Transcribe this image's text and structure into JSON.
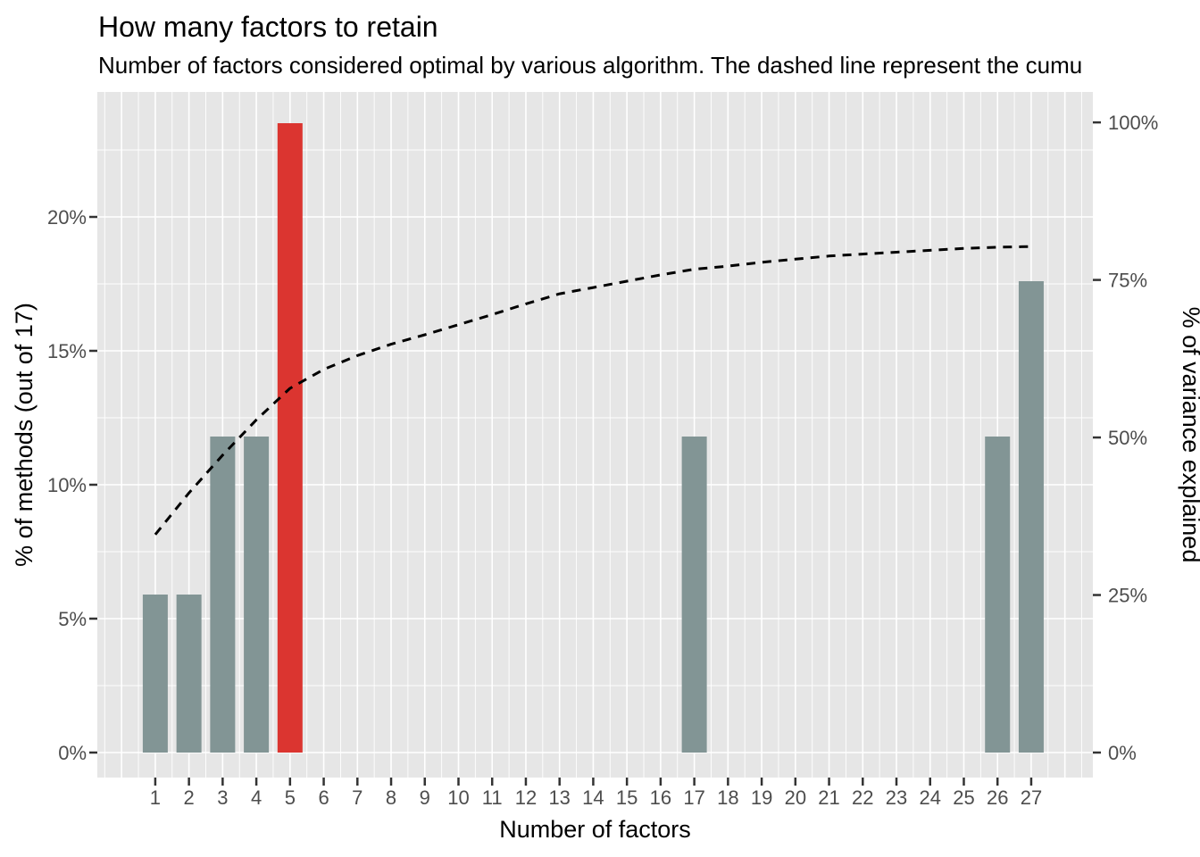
{
  "chart_data": {
    "type": "bar",
    "title": "How many factors to retain",
    "subtitle": "Number of factors considered optimal by various algorithm. The dashed line represent the cumu",
    "xlabel": "Number of factors",
    "ylabel_left": "% of methods (out of 17)",
    "ylabel_right": "% of variance explained",
    "categories": [
      1,
      2,
      3,
      4,
      5,
      6,
      7,
      8,
      9,
      10,
      11,
      12,
      13,
      14,
      15,
      16,
      17,
      18,
      19,
      20,
      21,
      22,
      23,
      24,
      25,
      26,
      27
    ],
    "series": [
      {
        "name": "% of methods (out of 17)",
        "kind": "bar",
        "values": [
          5.9,
          5.9,
          11.8,
          11.8,
          23.5,
          0,
          0,
          0,
          0,
          0,
          0,
          0,
          0,
          0,
          0,
          0,
          11.8,
          0,
          0,
          0,
          0,
          0,
          0,
          0,
          0,
          11.8,
          17.6
        ]
      },
      {
        "name": "cumulative % of variance explained",
        "kind": "dashed-line",
        "values": [
          34.6,
          41.2,
          47.2,
          52.8,
          57.8,
          60.8,
          63.0,
          64.8,
          66.3,
          67.9,
          69.5,
          71.2,
          72.8,
          73.8,
          74.8,
          75.8,
          76.7,
          77.2,
          77.8,
          78.3,
          78.8,
          79.1,
          79.4,
          79.7,
          80.0,
          80.2,
          80.3
        ]
      }
    ],
    "highlighted_category": 5,
    "left_axis": {
      "tick_labels": [
        "0%",
        "5%",
        "10%",
        "15%",
        "20%"
      ],
      "tick_values": [
        0,
        5,
        10,
        15,
        20
      ],
      "ylim": [
        0,
        24.6
      ]
    },
    "right_axis": {
      "tick_labels": [
        "0%",
        "25%",
        "50%",
        "75%",
        "100%"
      ],
      "tick_values": [
        0,
        25,
        50,
        75,
        100
      ],
      "ylim": [
        0,
        104.6
      ]
    },
    "grid": true,
    "legend": false,
    "colors": {
      "bar": "#829595",
      "highlighted_bar": "#DB3530",
      "line": "#000000",
      "panel_background": "#E6E6E6",
      "gridline": "#FFFFFF",
      "tick_label": "#4D4D4D",
      "tick_mark": "#333333",
      "text": "#000000"
    }
  }
}
